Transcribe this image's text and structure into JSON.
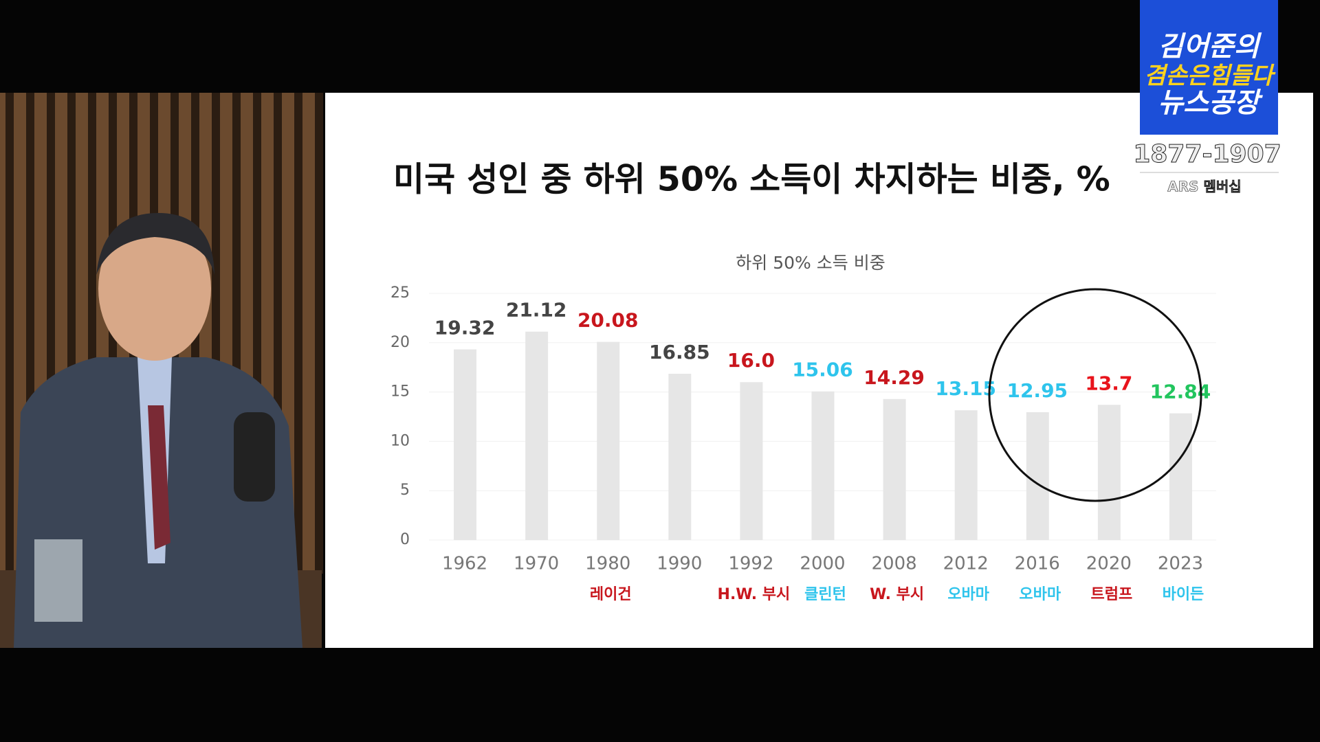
{
  "broadcast": {
    "logo_line1": "김어준의",
    "logo_line2": "겸손은힘들다",
    "logo_line3": "뉴스공장",
    "phone": "1877-1907",
    "membership": "ARS 멤버십"
  },
  "chart_data": {
    "type": "bar",
    "headline": "미국 성인 중 하위 50% 소득이 차지하는 비중, %",
    "title": "하위 50% 소득 비중",
    "categories": [
      "1962",
      "1970",
      "1980",
      "1990",
      "1992",
      "2000",
      "2008",
      "2012",
      "2016",
      "2020",
      "2023"
    ],
    "values": [
      19.32,
      21.12,
      20.08,
      16.85,
      16.0,
      15.06,
      14.29,
      13.15,
      12.95,
      13.7,
      12.84
    ],
    "value_labels": [
      "19.32",
      "21.12",
      "20.08",
      "16.85",
      "16.0",
      "15.06",
      "14.29",
      "13.15",
      "12.95",
      "13.7",
      "12.84"
    ],
    "label_colors": [
      "#444444",
      "#444444",
      "#c8161d",
      "#444444",
      "#c8161d",
      "#2ec4ec",
      "#c8161d",
      "#2ec4ec",
      "#2ec4ec",
      "#e8141c",
      "#22c55e"
    ],
    "presidents": [
      null,
      null,
      "레이건",
      null,
      "H.W. 부시",
      "클린턴",
      "W. 부시",
      "오바마",
      "오바마",
      "트럼프",
      "바이든"
    ],
    "president_colors": [
      null,
      null,
      "#c8161d",
      null,
      "#c8161d",
      "#2ec4ec",
      "#c8161d",
      "#2ec4ec",
      "#2ec4ec",
      "#c8161d",
      "#2ec4ec"
    ],
    "color": "#e6e6e6",
    "ylim": [
      0,
      25
    ],
    "yticks": [
      0,
      5,
      10,
      15,
      20,
      25
    ],
    "grid": true
  }
}
